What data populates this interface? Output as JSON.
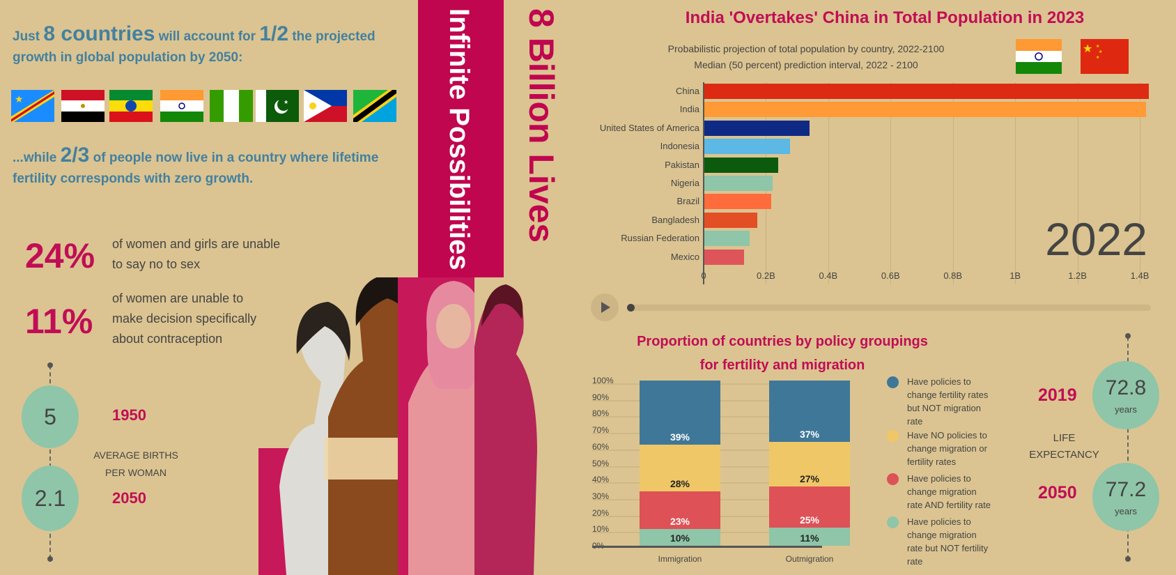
{
  "left": {
    "intro1": {
      "a": "Just ",
      "b": "8 countries",
      "c": " will account for ",
      "d": "1/2",
      "e": " the projected"
    },
    "intro2": "growth in global population by 2050:",
    "flags": [
      "DR Congo",
      "Egypt",
      "Ethiopia",
      "India",
      "Nigeria",
      "Pakistan",
      "Philippines",
      "Tanzania"
    ],
    "while1": {
      "a": "...while ",
      "b": "2/3",
      "c": " of people now live in a country where lifetime"
    },
    "while2": "fertility corresponds with zero growth.",
    "stat1": {
      "value": "24%",
      "text1": "of women and girls are unable",
      "text2": "to say no to sex"
    },
    "stat2": {
      "value": "11%",
      "text1": "of women are unable to",
      "text2": "make decision specifically",
      "text3": "about contraception"
    },
    "births": {
      "v1": "5",
      "y1": "1950",
      "v2": "2.1",
      "y2": "2050",
      "label1": "AVERAGE BIRTHS",
      "label2": "PER WOMAN"
    }
  },
  "middle": {
    "band_text": "Infinite Possibilities",
    "side_text": "8 Billion Lives"
  },
  "colors": {
    "bg": "#dbc491",
    "magenta": "#c0064f",
    "teal_text": "#44809f",
    "mint": "#8fc5a8"
  },
  "chart_data": [
    {
      "type": "bar",
      "title": "India 'Overtakes' China in Total Population in 2023",
      "subtitle1": "Probabilistic projection of total population by country, 2022-2100",
      "subtitle2": "Median (50 percent) prediction interval, 2022 - 2100",
      "year_label": "2022",
      "categories": [
        "China",
        "India",
        "United States of America",
        "Indonesia",
        "Pakistan",
        "Nigeria",
        "Brazil",
        "Bangladesh",
        "Russian Federation",
        "Mexico"
      ],
      "values": [
        1.426,
        1.417,
        0.338,
        0.276,
        0.236,
        0.219,
        0.215,
        0.171,
        0.145,
        0.127
      ],
      "colors": [
        "#dd2a12",
        "#ff9a36",
        "#0f2a85",
        "#5cb8e4",
        "#0c5a0e",
        "#8fc5a8",
        "#ff6b3a",
        "#e34e25",
        "#8fc5a8",
        "#dd5559"
      ],
      "xticks": [
        "0",
        "0.2B",
        "0.4B",
        "0.6B",
        "0.8B",
        "1B",
        "1.2B",
        "1.4B"
      ],
      "xlim": [
        0,
        1.4
      ],
      "unit": "billions"
    },
    {
      "type": "bar",
      "stacked": true,
      "title1": "Proportion of countries by policy groupings",
      "title2": "for fertility and migration",
      "categories": [
        "Immigration",
        "Outmigration"
      ],
      "yticks": [
        "100%",
        "90%",
        "80%",
        "70%",
        "60%",
        "50%",
        "40%",
        "30%",
        "20%",
        "10%",
        "0%"
      ],
      "ylim": [
        0,
        100
      ],
      "series": [
        {
          "name": "Have policies to change migration rate but NOT fertility rate",
          "values": [
            10,
            11
          ],
          "labels": [
            "10%",
            "11%"
          ],
          "color": "#8fc5a8",
          "text": "#222"
        },
        {
          "name": "Have policies to change migration rate AND fertility rate",
          "values": [
            23,
            25
          ],
          "labels": [
            "23%",
            "25%"
          ],
          "color": "#dd5157",
          "text": "#fff"
        },
        {
          "name": "Have NO policies to change migration or fertility rates",
          "values": [
            28,
            27
          ],
          "labels": [
            "28%",
            "27%"
          ],
          "color": "#f0c766",
          "text": "#222"
        },
        {
          "name": "Have policies to change fertility rates but NOT migration rate",
          "values": [
            39,
            37
          ],
          "labels": [
            "39%",
            "37%"
          ],
          "color": "#3f7798",
          "text": "#fff"
        }
      ],
      "legend": [
        {
          "lines": [
            "Have policies to",
            "change fertility rates",
            "but NOT migration",
            "rate"
          ],
          "color": "#3f7798"
        },
        {
          "lines": [
            "Have NO policies to",
            "change migration or",
            "fertility rates"
          ],
          "color": "#f0c766"
        },
        {
          "lines": [
            "Have policies to",
            "change migration",
            "rate AND fertility rate"
          ],
          "color": "#dd5157"
        },
        {
          "lines": [
            "Have policies to",
            "change migration",
            "rate but NOT fertility",
            "rate"
          ],
          "color": "#8fc5a8"
        }
      ]
    }
  ],
  "life": {
    "y1": "2019",
    "v1": "72.8",
    "y2": "2050",
    "v2": "77.2",
    "unit": "years",
    "label1": "LIFE",
    "label2": "EXPECTANCY"
  },
  "player": {
    "progress": 0
  }
}
